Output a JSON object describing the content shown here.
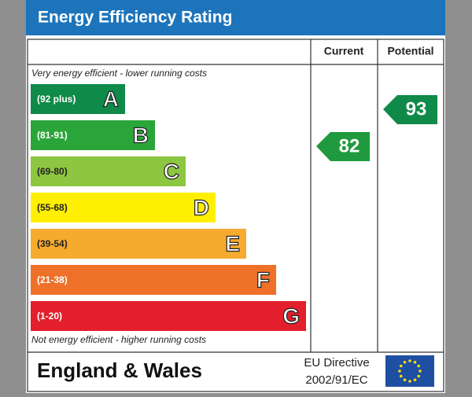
{
  "header": {
    "title": "Energy Efficiency Rating"
  },
  "columns": {
    "current": "Current",
    "potential": "Potential"
  },
  "top_note": "Very energy efficient - lower running costs",
  "bottom_note": "Not energy efficient - higher running costs",
  "bands": [
    {
      "range": "(92 plus)",
      "letter": "A",
      "color": "#0f8a48"
    },
    {
      "range": "(81-91)",
      "letter": "B",
      "color": "#2aa53a"
    },
    {
      "range": "(69-80)",
      "letter": "C",
      "color": "#8dc640"
    },
    {
      "range": "(55-68)",
      "letter": "D",
      "color": "#ffef00"
    },
    {
      "range": "(39-54)",
      "letter": "E",
      "color": "#f6ab2f"
    },
    {
      "range": "(21-38)",
      "letter": "F",
      "color": "#ee7029"
    },
    {
      "range": "(1-20)",
      "letter": "G",
      "color": "#e31f2d"
    }
  ],
  "current": {
    "value": 82,
    "color": "#1f9a3e"
  },
  "potential": {
    "value": 93,
    "color": "#0f8a48"
  },
  "footer": {
    "region": "England & Wales",
    "directive_line1": "EU Directive",
    "directive_line2": "2002/91/EC"
  }
}
